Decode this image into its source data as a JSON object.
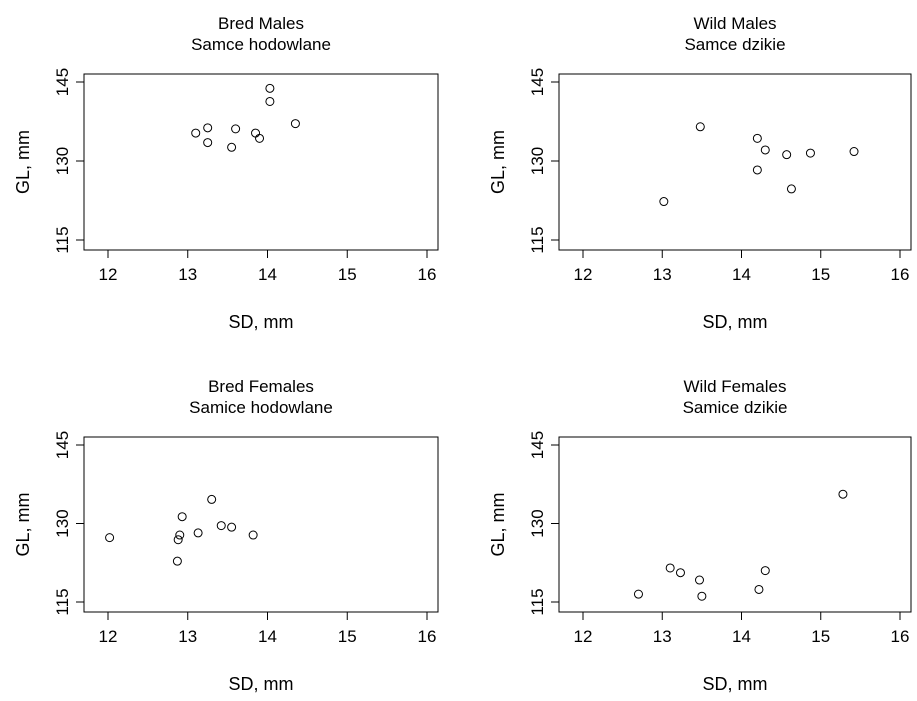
{
  "chart_data": [
    {
      "type": "scatter",
      "title": "Bred Males",
      "subtitle": "Samce hodowlane",
      "xlabel": "SD, mm",
      "ylabel": "GL, mm",
      "xlim": [
        12,
        16
      ],
      "ylim": [
        115,
        145
      ],
      "xticks": [
        "12",
        "13",
        "14",
        "15",
        "16"
      ],
      "yticks": [
        "115",
        "130",
        "145"
      ],
      "x": [
        13.1,
        13.25,
        13.25,
        13.55,
        13.6,
        13.85,
        13.9,
        14.03,
        14.03,
        14.35
      ],
      "y": [
        135.3,
        133.5,
        136.3,
        132.6,
        136.1,
        135.3,
        134.3,
        141.3,
        143.8,
        137.1
      ]
    },
    {
      "type": "scatter",
      "title": "Wild Males",
      "subtitle": "Samce dzikie",
      "xlabel": "SD, mm",
      "ylabel": "GL, mm",
      "xlim": [
        12,
        16
      ],
      "ylim": [
        115,
        145
      ],
      "xticks": [
        "12",
        "13",
        "14",
        "15",
        "16"
      ],
      "yticks": [
        "115",
        "130",
        "145"
      ],
      "x": [
        13.02,
        13.48,
        14.2,
        14.2,
        14.3,
        14.57,
        14.63,
        14.87,
        15.42
      ],
      "y": [
        122.3,
        136.5,
        128.3,
        134.3,
        132.1,
        131.2,
        124.7,
        131.5,
        131.8
      ]
    },
    {
      "type": "scatter",
      "title": "Bred Females",
      "subtitle": "Samice hodowlane",
      "xlabel": "SD, mm",
      "ylabel": "GL, mm",
      "xlim": [
        12,
        16
      ],
      "ylim": [
        115,
        145
      ],
      "xticks": [
        "12",
        "13",
        "14",
        "15",
        "16"
      ],
      "yticks": [
        "115",
        "130",
        "145"
      ],
      "x": [
        12.02,
        12.87,
        12.88,
        12.9,
        12.93,
        13.13,
        13.3,
        13.42,
        13.55,
        13.82
      ],
      "y": [
        127.3,
        122.8,
        126.9,
        127.8,
        131.3,
        128.2,
        134.6,
        129.6,
        129.3,
        127.8
      ]
    },
    {
      "type": "scatter",
      "title": "Wild Females",
      "subtitle": "Samice dzikie",
      "xlabel": "SD, mm",
      "ylabel": "GL, mm",
      "xlim": [
        12,
        16
      ],
      "ylim": [
        115,
        145
      ],
      "xticks": [
        "12",
        "13",
        "14",
        "15",
        "16"
      ],
      "yticks": [
        "115",
        "130",
        "145"
      ],
      "x": [
        12.7,
        13.1,
        13.23,
        13.47,
        13.5,
        14.22,
        14.3,
        15.28
      ],
      "y": [
        116.5,
        121.5,
        120.6,
        119.2,
        116.1,
        117.4,
        121.0,
        135.6
      ]
    }
  ]
}
